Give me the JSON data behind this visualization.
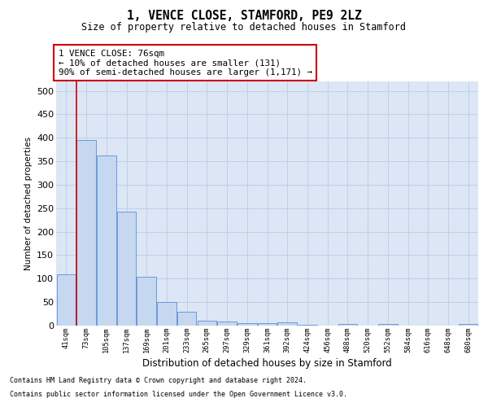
{
  "title": "1, VENCE CLOSE, STAMFORD, PE9 2LZ",
  "subtitle": "Size of property relative to detached houses in Stamford",
  "xlabel": "Distribution of detached houses by size in Stamford",
  "ylabel": "Number of detached properties",
  "categories": [
    "41sqm",
    "73sqm",
    "105sqm",
    "137sqm",
    "169sqm",
    "201sqm",
    "233sqm",
    "265sqm",
    "297sqm",
    "329sqm",
    "361sqm",
    "392sqm",
    "424sqm",
    "456sqm",
    "488sqm",
    "520sqm",
    "552sqm",
    "584sqm",
    "616sqm",
    "648sqm",
    "680sqm"
  ],
  "values": [
    110,
    395,
    362,
    242,
    104,
    50,
    30,
    10,
    8,
    6,
    5,
    7,
    2,
    0,
    4,
    0,
    3,
    0,
    0,
    0,
    3
  ],
  "bar_color": "#c5d8f0",
  "bar_edge_color": "#5b8fd4",
  "ylim": [
    0,
    520
  ],
  "yticks": [
    0,
    50,
    100,
    150,
    200,
    250,
    300,
    350,
    400,
    450,
    500
  ],
  "vline_x": 1,
  "vline_color": "#cc0000",
  "annotation_text": "1 VENCE CLOSE: 76sqm\n← 10% of detached houses are smaller (131)\n90% of semi-detached houses are larger (1,171) →",
  "annotation_box_color": "white",
  "annotation_box_edge": "#cc0000",
  "footer_line1": "Contains HM Land Registry data © Crown copyright and database right 2024.",
  "footer_line2": "Contains public sector information licensed under the Open Government Licence v3.0.",
  "plot_bg_color": "#dce6f5",
  "grid_color": "#b8cde8"
}
